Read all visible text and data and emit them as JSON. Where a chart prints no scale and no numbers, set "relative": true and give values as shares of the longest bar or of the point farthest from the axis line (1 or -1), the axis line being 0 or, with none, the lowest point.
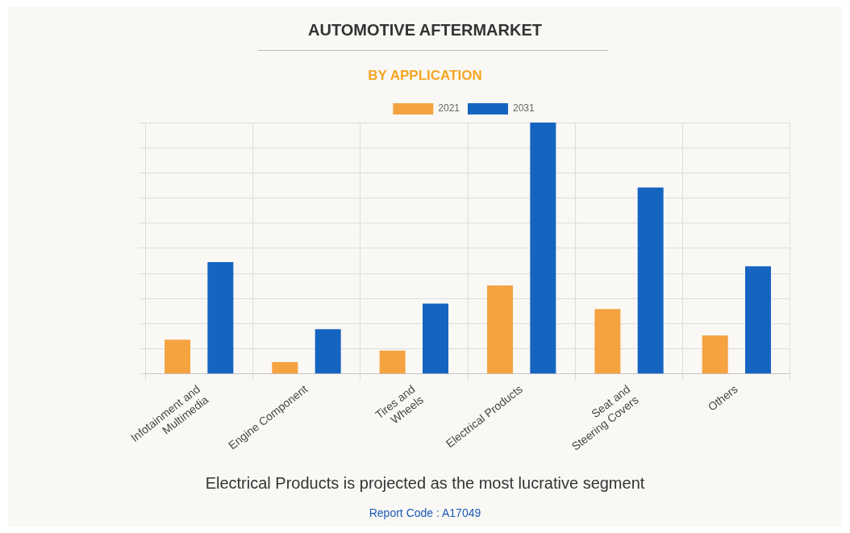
{
  "chart_data": {
    "type": "bar",
    "title": "AUTOMOTIVE AFTERMARKET",
    "subtitle": "BY APPLICATION",
    "categories": [
      "Infotainment and\nMultimedia",
      "Engine Component",
      "Tires and\nWheels",
      "Electrical Products",
      "Seat and\nSteering Covers",
      "Others"
    ],
    "series": [
      {
        "name": "2021",
        "color": "#f4a340",
        "values": [
          0.136,
          0.047,
          0.093,
          0.352,
          0.258,
          0.153
        ]
      },
      {
        "name": "2031",
        "color": "#1565c0",
        "values": [
          0.445,
          0.178,
          0.28,
          1,
          0.742,
          0.428
        ]
      }
    ],
    "relative": true,
    "grid": true,
    "legend": "top",
    "annotations": [
      "Electrical Products is projected as the most lucrative segment",
      "Report Code : A17049"
    ]
  }
}
